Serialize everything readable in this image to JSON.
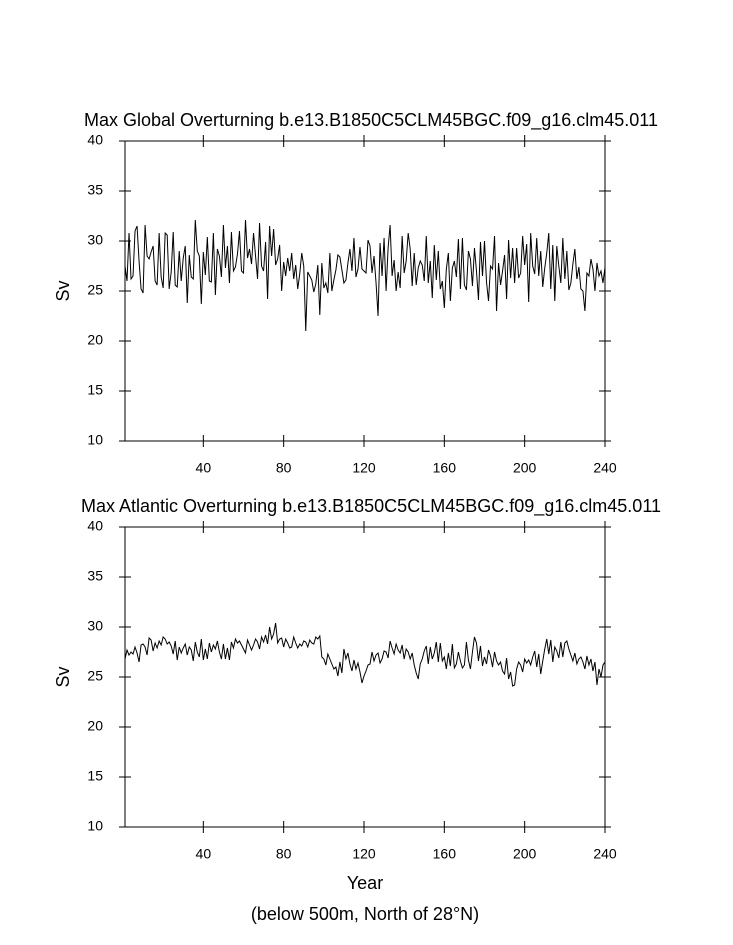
{
  "chart_data": [
    {
      "type": "line",
      "title": "Max Global Overturning b.e13.B1850C5CLM45BGC.f09_g16.clm45.011",
      "ylabel": "Sv",
      "xlim": [
        1,
        240
      ],
      "ylim": [
        10,
        40
      ],
      "xticks": [
        40,
        80,
        120,
        160,
        200,
        240
      ],
      "yticks": [
        10,
        15,
        20,
        25,
        30,
        35,
        40
      ],
      "x": [
        1,
        2,
        3,
        4,
        5,
        6,
        7,
        8,
        9,
        10,
        11,
        12,
        13,
        14,
        15,
        16,
        17,
        18,
        19,
        20,
        21,
        22,
        23,
        24,
        25,
        26,
        27,
        28,
        29,
        30,
        31,
        32,
        33,
        34,
        35,
        36,
        37,
        38,
        39,
        40,
        41,
        42,
        43,
        44,
        45,
        46,
        47,
        48,
        49,
        50,
        51,
        52,
        53,
        54,
        55,
        56,
        57,
        58,
        59,
        60,
        61,
        62,
        63,
        64,
        65,
        66,
        67,
        68,
        69,
        70,
        71,
        72,
        73,
        74,
        75,
        76,
        77,
        78,
        79,
        80,
        81,
        82,
        83,
        84,
        85,
        86,
        87,
        88,
        89,
        90,
        91,
        92,
        93,
        94,
        95,
        96,
        97,
        98,
        99,
        100,
        101,
        102,
        103,
        104,
        105,
        106,
        107,
        108,
        109,
        110,
        111,
        112,
        113,
        114,
        115,
        116,
        117,
        118,
        119,
        120,
        121,
        122,
        123,
        124,
        125,
        126,
        127,
        128,
        129,
        130,
        131,
        132,
        133,
        134,
        135,
        136,
        137,
        138,
        139,
        140,
        141,
        142,
        143,
        144,
        145,
        146,
        147,
        148,
        149,
        150,
        151,
        152,
        153,
        154,
        155,
        156,
        157,
        158,
        159,
        160,
        161,
        162,
        163,
        164,
        165,
        166,
        167,
        168,
        169,
        170,
        171,
        172,
        173,
        174,
        175,
        176,
        177,
        178,
        179,
        180,
        181,
        182,
        183,
        184,
        185,
        186,
        187,
        188,
        189,
        190,
        191,
        192,
        193,
        194,
        195,
        196,
        197,
        198,
        199,
        200,
        201,
        202,
        203,
        204,
        205,
        206,
        207,
        208,
        209,
        210,
        211,
        212,
        213,
        214,
        215,
        216,
        217,
        218,
        219,
        220,
        221,
        222,
        223,
        224,
        225,
        226,
        227,
        228,
        229,
        230,
        231,
        232,
        233,
        234,
        235,
        236,
        237,
        238,
        239,
        240
      ],
      "series": [
        {
          "color": "#000000",
          "values": [
            27.5,
            26.0,
            30.8,
            26.2,
            26.5,
            31.0,
            31.5,
            28.0,
            25.2,
            24.8,
            31.6,
            28.5,
            28.2,
            28.9,
            29.5,
            26.0,
            25.6,
            30.8,
            26.4,
            25.3,
            30.8,
            30.6,
            25.2,
            26.9,
            30.9,
            25.6,
            25.4,
            29.0,
            26.0,
            28.3,
            29.5,
            23.8,
            28.6,
            26.4,
            26.2,
            32.1,
            29.0,
            28.5,
            23.7,
            28.9,
            26.6,
            30.4,
            26.0,
            25.9,
            30.8,
            24.6,
            29.2,
            28.5,
            26.4,
            31.6,
            27.3,
            29.5,
            25.8,
            30.9,
            27.0,
            27.4,
            28.7,
            31.0,
            27.0,
            26.8,
            32.1,
            28.3,
            29.2,
            27.7,
            30.8,
            28.5,
            26.2,
            31.8,
            27.5,
            27.0,
            29.9,
            24.2,
            31.5,
            28.5,
            31.2,
            27.6,
            28.2,
            29.6,
            25.0,
            27.9,
            26.5,
            28.3,
            27.0,
            28.8,
            26.2,
            27.6,
            25.2,
            26.7,
            28.8,
            27.5,
            21.0,
            26.9,
            26.5,
            26.1,
            24.9,
            25.7,
            27.6,
            22.6,
            27.8,
            25.3,
            25.8,
            24.8,
            28.8,
            25.0,
            26.1,
            27.1,
            28.6,
            28.4,
            27.1,
            25.8,
            26.1,
            27.8,
            29.2,
            27.0,
            30.3,
            26.4,
            27.2,
            29.4,
            27.2,
            27.0,
            26.8,
            30.1,
            29.5,
            26.8,
            28.5,
            25.8,
            22.5,
            29.8,
            26.5,
            30.3,
            25.0,
            29.3,
            31.6,
            26.5,
            28.1,
            25.0,
            26.9,
            25.3,
            30.5,
            26.8,
            28.0,
            30.8,
            29.2,
            25.5,
            28.8,
            25.6,
            27.3,
            28.0,
            27.6,
            26.0,
            30.5,
            25.8,
            28.0,
            24.3,
            29.6,
            26.1,
            29.0,
            25.2,
            26.0,
            23.3,
            27.2,
            28.8,
            24.0,
            27.3,
            28.0,
            26.4,
            30.2,
            25.2,
            30.3,
            25.6,
            25.1,
            29.0,
            28.2,
            25.5,
            29.3,
            27.0,
            24.1,
            29.9,
            26.5,
            30.0,
            25.9,
            24.0,
            27.5,
            27.2,
            30.5,
            23.0,
            27.8,
            25.6,
            27.0,
            28.6,
            24.2,
            30.1,
            26.3,
            29.3,
            25.8,
            29.3,
            26.3,
            26.8,
            30.5,
            27.6,
            29.7,
            23.9,
            30.8,
            27.5,
            26.7,
            30.3,
            26.5,
            29.0,
            25.4,
            27.3,
            28.8,
            30.8,
            25.2,
            29.6,
            24.0,
            29.5,
            27.5,
            25.8,
            30.3,
            26.2,
            29.0,
            25.1,
            25.8,
            27.7,
            29.2,
            26.2,
            27.4,
            25.2,
            25.0,
            23.0,
            26.8,
            26.5,
            28.2,
            27.2,
            25.0,
            27.8,
            26.5,
            27.0,
            25.8,
            27.4
          ]
        }
      ]
    },
    {
      "type": "line",
      "title": "Max Atlantic Overturning b.e13.B1850C5CLM45BGC.f09_g16.clm45.011",
      "ylabel": "Sv",
      "xlabel": "Year",
      "note": "(below 500m, North of 28°N)",
      "xlim": [
        1,
        240
      ],
      "ylim": [
        10,
        40
      ],
      "xticks": [
        40,
        80,
        120,
        160,
        200,
        240
      ],
      "yticks": [
        10,
        15,
        20,
        25,
        30,
        35,
        40
      ],
      "x": [
        1,
        2,
        3,
        4,
        5,
        6,
        7,
        8,
        9,
        10,
        11,
        12,
        13,
        14,
        15,
        16,
        17,
        18,
        19,
        20,
        21,
        22,
        23,
        24,
        25,
        26,
        27,
        28,
        29,
        30,
        31,
        32,
        33,
        34,
        35,
        36,
        37,
        38,
        39,
        40,
        41,
        42,
        43,
        44,
        45,
        46,
        47,
        48,
        49,
        50,
        51,
        52,
        53,
        54,
        55,
        56,
        57,
        58,
        59,
        60,
        61,
        62,
        63,
        64,
        65,
        66,
        67,
        68,
        69,
        70,
        71,
        72,
        73,
        74,
        75,
        76,
        77,
        78,
        79,
        80,
        81,
        82,
        83,
        84,
        85,
        86,
        87,
        88,
        89,
        90,
        91,
        92,
        93,
        94,
        95,
        96,
        97,
        98,
        99,
        100,
        101,
        102,
        103,
        104,
        105,
        106,
        107,
        108,
        109,
        110,
        111,
        112,
        113,
        114,
        115,
        116,
        117,
        118,
        119,
        120,
        121,
        122,
        123,
        124,
        125,
        126,
        127,
        128,
        129,
        130,
        131,
        132,
        133,
        134,
        135,
        136,
        137,
        138,
        139,
        140,
        141,
        142,
        143,
        144,
        145,
        146,
        147,
        148,
        149,
        150,
        151,
        152,
        153,
        154,
        155,
        156,
        157,
        158,
        159,
        160,
        161,
        162,
        163,
        164,
        165,
        166,
        167,
        168,
        169,
        170,
        171,
        172,
        173,
        174,
        175,
        176,
        177,
        178,
        179,
        180,
        181,
        182,
        183,
        184,
        185,
        186,
        187,
        188,
        189,
        190,
        191,
        192,
        193,
        194,
        195,
        196,
        197,
        198,
        199,
        200,
        201,
        202,
        203,
        204,
        205,
        206,
        207,
        208,
        209,
        210,
        211,
        212,
        213,
        214,
        215,
        216,
        217,
        218,
        219,
        220,
        221,
        222,
        223,
        224,
        225,
        226,
        227,
        228,
        229,
        230,
        231,
        232,
        233,
        234,
        235,
        236,
        237,
        238,
        239,
        240
      ],
      "series": [
        {
          "color": "#000000",
          "values": [
            26.8,
            27.7,
            27.2,
            27.5,
            27.3,
            28.0,
            27.4,
            26.5,
            28.2,
            28.3,
            28.0,
            27.2,
            28.9,
            28.7,
            27.6,
            28.4,
            27.9,
            28.6,
            28.2,
            29.0,
            28.8,
            28.3,
            28.5,
            28.1,
            27.3,
            28.6,
            26.7,
            28.0,
            27.4,
            27.9,
            28.3,
            27.2,
            28.0,
            27.7,
            26.6,
            28.5,
            27.5,
            27.0,
            28.8,
            26.7,
            27.8,
            26.8,
            28.4,
            27.5,
            28.2,
            27.8,
            28.6,
            27.5,
            26.8,
            28.3,
            26.8,
            27.9,
            26.7,
            28.5,
            27.9,
            28.8,
            28.4,
            28.6,
            28.2,
            27.8,
            27.4,
            28.7,
            28.2,
            27.7,
            28.2,
            28.8,
            28.5,
            27.8,
            29.0,
            28.5,
            29.2,
            28.3,
            30.0,
            28.8,
            29.3,
            30.4,
            28.4,
            28.8,
            28.9,
            28.0,
            28.8,
            28.4,
            27.9,
            28.0,
            29.0,
            28.4,
            27.9,
            28.3,
            28.1,
            28.6,
            28.5,
            28.0,
            28.7,
            28.4,
            28.3,
            29.0,
            28.8,
            29.1,
            27.0,
            26.8,
            26.2,
            27.3,
            26.8,
            26.3,
            25.8,
            26.0,
            25.1,
            26.5,
            25.4,
            27.8,
            26.8,
            27.4,
            26.3,
            25.6,
            26.7,
            25.8,
            26.4,
            25.5,
            24.4,
            25.1,
            25.6,
            26.2,
            26.3,
            27.5,
            26.6,
            27.2,
            27.4,
            26.4,
            26.8,
            27.6,
            27.5,
            26.9,
            28.6,
            27.9,
            27.3,
            28.3,
            27.7,
            27.4,
            28.2,
            26.8,
            27.8,
            27.5,
            26.8,
            27.4,
            26.2,
            25.4,
            24.8,
            26.3,
            26.8,
            27.6,
            28.1,
            26.3,
            28.0,
            26.8,
            27.4,
            28.5,
            26.5,
            28.4,
            26.6,
            27.0,
            25.8,
            27.4,
            26.1,
            28.3,
            25.9,
            26.3,
            27.5,
            26.6,
            25.9,
            26.2,
            28.5,
            26.7,
            25.8,
            27.5,
            29.0,
            28.4,
            26.6,
            28.1,
            26.1,
            27.0,
            26.3,
            27.7,
            27.1,
            26.0,
            27.5,
            26.6,
            26.2,
            26.5,
            25.6,
            25.3,
            26.9,
            24.8,
            25.5,
            24.1,
            24.2,
            25.8,
            26.5,
            26.2,
            25.5,
            26.8,
            26.4,
            26.7,
            26.2,
            27.0,
            27.6,
            26.0,
            27.3,
            25.3,
            26.6,
            27.8,
            28.8,
            27.3,
            28.7,
            26.5,
            28.0,
            27.6,
            26.9,
            28.5,
            27.0,
            28.4,
            28.6,
            27.8,
            27.2,
            26.6,
            27.4,
            26.3,
            26.8,
            27.0,
            26.5,
            25.8,
            27.1,
            26.2,
            26.8,
            25.6,
            26.5,
            24.2,
            25.8,
            25.0,
            26.2,
            26.5
          ]
        }
      ]
    }
  ]
}
